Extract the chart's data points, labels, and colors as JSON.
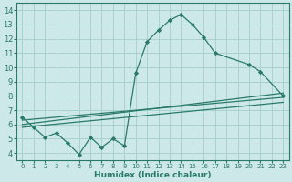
{
  "xlabel": "Humidex (Indice chaleur)",
  "bg_color": "#cce8e8",
  "grid_color": "#aad0d0",
  "line_color": "#2a7a6a",
  "xlim": [
    -0.5,
    23.5
  ],
  "ylim": [
    3.5,
    14.5
  ],
  "xticks": [
    0,
    1,
    2,
    3,
    4,
    5,
    6,
    7,
    8,
    9,
    10,
    11,
    12,
    13,
    14,
    15,
    16,
    17,
    18,
    19,
    20,
    21,
    22,
    23
  ],
  "yticks": [
    4,
    5,
    6,
    7,
    8,
    9,
    10,
    11,
    12,
    13,
    14
  ],
  "series1_x": [
    0,
    1,
    2,
    3,
    4,
    5,
    6,
    7,
    8,
    9,
    10,
    11,
    12,
    13,
    14,
    15,
    16,
    17,
    20,
    21,
    23
  ],
  "series1_y": [
    6.5,
    5.8,
    5.1,
    5.4,
    4.7,
    3.9,
    5.1,
    4.4,
    5.0,
    4.5,
    9.6,
    11.8,
    12.6,
    13.3,
    13.7,
    13.0,
    12.1,
    11.0,
    10.2,
    9.7,
    8.0
  ],
  "series2_x": [
    0,
    23
  ],
  "series2_y": [
    6.3,
    7.9
  ],
  "series3_x": [
    0,
    23
  ],
  "series3_y": [
    6.0,
    8.2
  ],
  "series4_x": [
    0,
    23
  ],
  "series4_y": [
    5.8,
    7.55
  ]
}
